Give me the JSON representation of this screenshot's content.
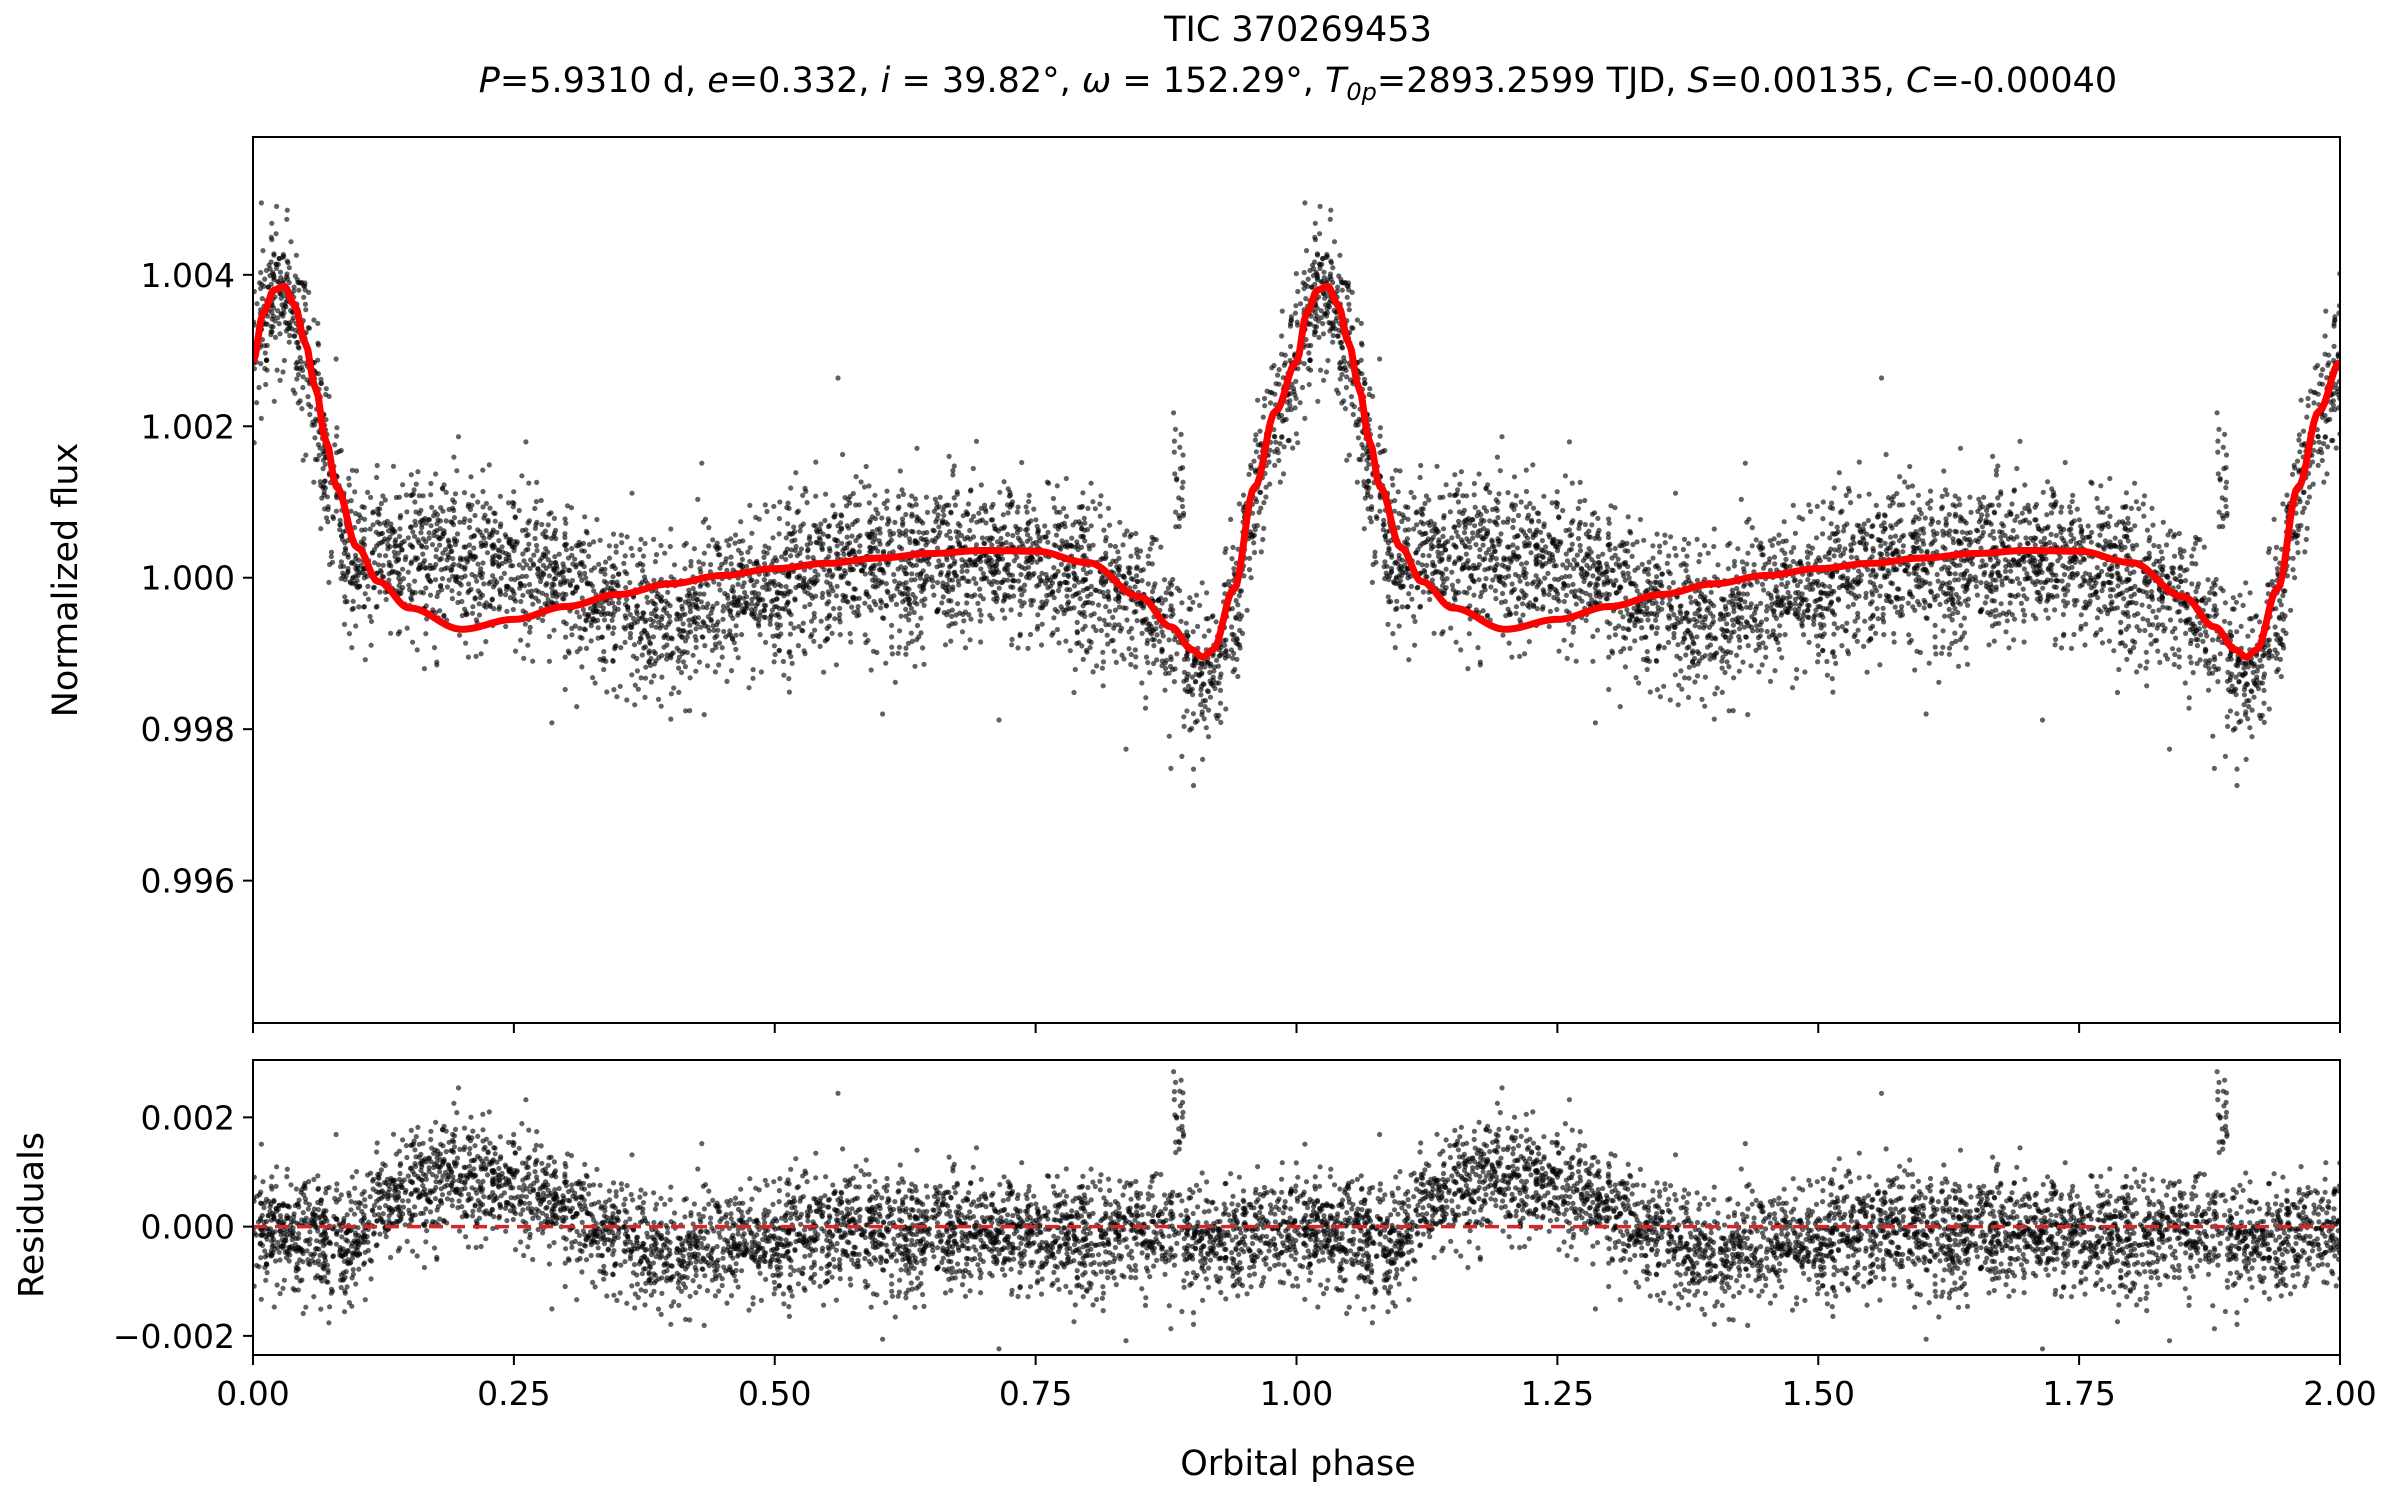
{
  "title": "TIC 370269453",
  "subtitle": {
    "P_label": "P",
    "P_value": "=5.9310 d, ",
    "e_label": "e",
    "e_value": "=0.332, ",
    "i_label": "i",
    "i_value": " = 39.82°, ",
    "omega_label": "ω",
    "omega_value": " = 152.29°, ",
    "T_label": "T",
    "T_sub": "0p",
    "T_value": "=2893.2599 TJD, ",
    "S_label": "S",
    "S_value": "=0.00135, ",
    "C_label": "C",
    "C_value": "=-0.00040"
  },
  "colors": {
    "model": "#ff0000",
    "points": "#000000",
    "zero_line": "#d62728"
  },
  "chart_data": [
    {
      "type": "scatter",
      "panel": "top",
      "ylabel": "Normalized flux",
      "xlim": [
        0.0,
        2.0
      ],
      "ylim": [
        0.99412,
        1.00582
      ],
      "yticks": [
        0.996,
        0.998,
        1.0,
        1.002,
        1.004
      ],
      "ytick_labels": [
        "0.996",
        "0.998",
        "1.000",
        "1.002",
        "1.004"
      ],
      "model_curve": {
        "phase": [
          0.0,
          0.01,
          0.02,
          0.03,
          0.04,
          0.05,
          0.06,
          0.07,
          0.08,
          0.1,
          0.12,
          0.15,
          0.2,
          0.25,
          0.3,
          0.35,
          0.4,
          0.45,
          0.5,
          0.55,
          0.6,
          0.65,
          0.7,
          0.75,
          0.8,
          0.85,
          0.88,
          0.9,
          0.91,
          0.92,
          0.94,
          0.96,
          0.98,
          1.0
        ],
        "flux": [
          1.00285,
          1.0035,
          1.0038,
          1.00385,
          1.0036,
          1.0031,
          1.0025,
          1.0018,
          1.0012,
          1.0004,
          0.99995,
          0.9996,
          0.99932,
          0.99945,
          0.99962,
          0.99978,
          0.99992,
          1.00003,
          1.00012,
          1.00019,
          1.00026,
          1.00032,
          1.00036,
          1.00035,
          1.0002,
          0.99975,
          0.99935,
          0.99905,
          0.99895,
          0.99905,
          0.99985,
          1.0012,
          1.0022,
          1.00285
        ],
        "periodic": true
      },
      "observed_points": {
        "n_per_cycle": 3800,
        "noise_sigma": 0.00052,
        "residual_trend_phase": [
          0.0,
          0.05,
          0.09,
          0.13,
          0.18,
          0.23,
          0.28,
          0.33,
          0.4,
          0.47,
          0.55,
          0.65,
          0.75,
          0.85,
          0.9,
          0.93,
          0.97,
          1.0
        ],
        "residual_trend_value": [
          0.0,
          -0.0001,
          -0.0004,
          0.0005,
          0.0009,
          0.0008,
          0.0005,
          0.0,
          -0.00055,
          -0.00025,
          0.0,
          -0.0001,
          -0.00015,
          -0.0001,
          -0.00025,
          -0.0003,
          -0.0001,
          0.0
        ]
      }
    },
    {
      "type": "scatter",
      "panel": "bottom",
      "xlabel": "Orbital phase",
      "ylabel": "Residuals",
      "xlim": [
        0.0,
        2.0
      ],
      "ylim": [
        -0.00235,
        0.00305
      ],
      "xticks": [
        0.0,
        0.25,
        0.5,
        0.75,
        1.0,
        1.25,
        1.5,
        1.75,
        2.0
      ],
      "xtick_labels": [
        "0.00",
        "0.25",
        "0.50",
        "0.75",
        "1.00",
        "1.25",
        "1.50",
        "1.75",
        "2.00"
      ],
      "yticks": [
        -0.002,
        0.0,
        0.002
      ],
      "ytick_labels": [
        "−0.002",
        "0.000",
        "0.002"
      ],
      "zero_line": 0.0
    }
  ]
}
